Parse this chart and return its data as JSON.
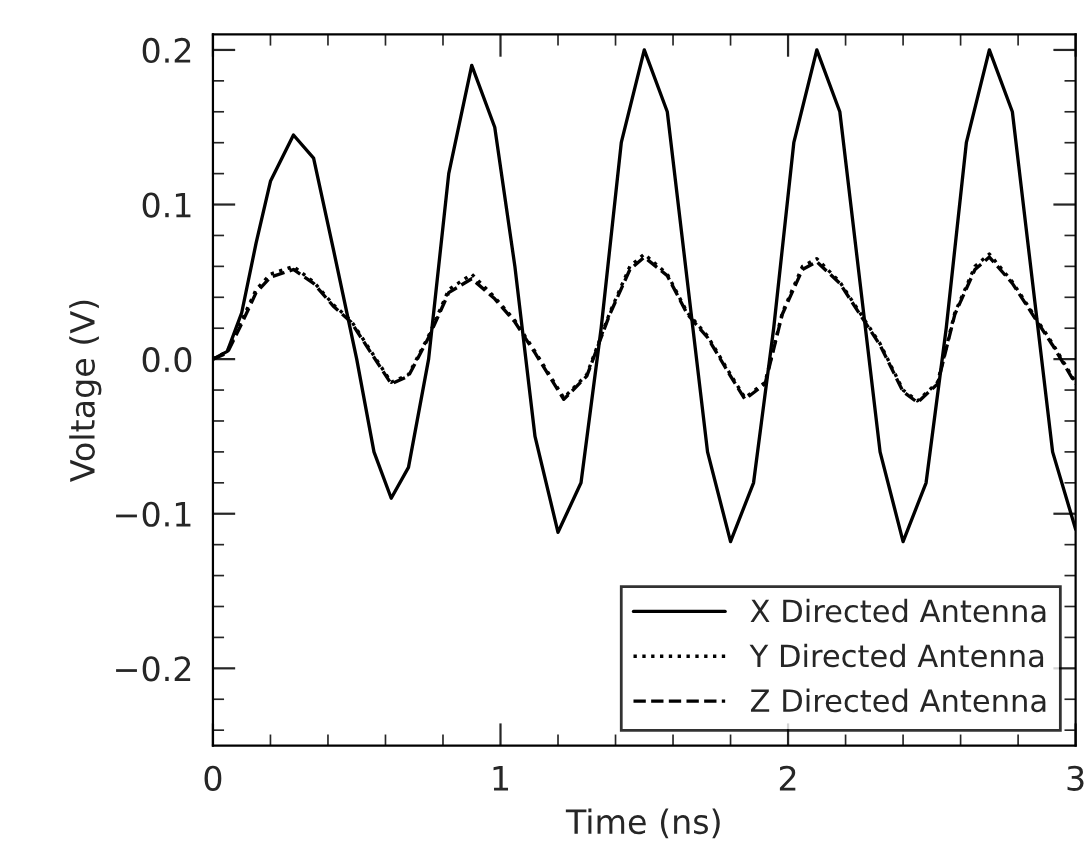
{
  "chart_data": {
    "type": "line",
    "xlabel": "Time (ns)",
    "ylabel": "Voltage (V)",
    "xlim": [
      0,
      3
    ],
    "xticks": [
      0,
      1,
      2,
      3
    ],
    "ylim": [
      -0.25,
      0.21
    ],
    "yticks": [
      {
        "value": -0.2,
        "label": "−0.2"
      },
      {
        "value": -0.1,
        "label": "−0.1"
      },
      {
        "value": 0.0,
        "label": "0.0"
      },
      0.1,
      0.2
    ],
    "grid": false,
    "legend": "bottom right",
    "marker": "none",
    "series": [
      {
        "name": "X Directed Antenna",
        "color": "#000000",
        "line_style": "solid",
        "x": [
          0,
          0.05,
          0.1,
          0.15,
          0.2,
          0.28,
          0.35,
          0.42,
          0.5,
          0.56,
          0.62,
          0.68,
          0.75,
          0.82,
          0.9,
          0.98,
          1.05,
          1.12,
          1.2,
          1.28,
          1.35,
          1.42,
          1.5,
          1.58,
          1.65,
          1.72,
          1.8,
          1.88,
          1.95,
          2.02,
          2.1,
          2.18,
          2.25,
          2.32,
          2.4,
          2.48,
          2.55,
          2.62,
          2.7,
          2.78,
          2.85,
          2.92,
          3.0
        ],
        "values": [
          0,
          0.005,
          0.03,
          0.075,
          0.115,
          0.145,
          0.13,
          0.07,
          0.0,
          -0.06,
          -0.09,
          -0.07,
          0.0,
          0.12,
          0.19,
          0.15,
          0.06,
          -0.05,
          -0.112,
          -0.08,
          0.02,
          0.14,
          0.2,
          0.16,
          0.05,
          -0.06,
          -0.118,
          -0.08,
          0.02,
          0.14,
          0.2,
          0.16,
          0.05,
          -0.06,
          -0.118,
          -0.08,
          0.02,
          0.14,
          0.2,
          0.16,
          0.05,
          -0.06,
          -0.11
        ]
      },
      {
        "name": "Y Directed Antenna",
        "color": "#000000",
        "line_style": "dotted",
        "x": [
          0,
          0.05,
          0.1,
          0.15,
          0.2,
          0.28,
          0.35,
          0.42,
          0.48,
          0.55,
          0.62,
          0.68,
          0.75,
          0.82,
          0.9,
          0.98,
          1.05,
          1.12,
          1.22,
          1.3,
          1.38,
          1.45,
          1.5,
          1.58,
          1.65,
          1.72,
          1.8,
          1.85,
          1.92,
          1.98,
          2.05,
          2.1,
          2.18,
          2.25,
          2.32,
          2.4,
          2.45,
          2.52,
          2.58,
          2.65,
          2.7,
          2.78,
          2.85,
          2.92,
          3.0
        ],
        "values": [
          0,
          0.005,
          0.025,
          0.045,
          0.055,
          0.06,
          0.05,
          0.035,
          0.025,
          0.005,
          -0.015,
          -0.01,
          0.015,
          0.045,
          0.055,
          0.04,
          0.025,
          0.005,
          -0.025,
          -0.01,
          0.03,
          0.06,
          0.068,
          0.055,
          0.03,
          0.015,
          -0.01,
          -0.025,
          -0.015,
          0.03,
          0.06,
          0.065,
          0.05,
          0.03,
          0.01,
          -0.02,
          -0.027,
          -0.015,
          0.03,
          0.06,
          0.068,
          0.05,
          0.03,
          0.01,
          -0.015
        ]
      },
      {
        "name": "Z Directed Antenna",
        "color": "#000000",
        "line_style": "dashed",
        "x": [
          0,
          0.05,
          0.1,
          0.15,
          0.2,
          0.28,
          0.35,
          0.42,
          0.48,
          0.55,
          0.62,
          0.68,
          0.75,
          0.82,
          0.9,
          0.98,
          1.05,
          1.12,
          1.22,
          1.3,
          1.38,
          1.45,
          1.5,
          1.58,
          1.65,
          1.72,
          1.8,
          1.85,
          1.92,
          1.98,
          2.05,
          2.1,
          2.18,
          2.25,
          2.32,
          2.4,
          2.45,
          2.52,
          2.58,
          2.65,
          2.7,
          2.78,
          2.85,
          2.92,
          3.0
        ],
        "values": [
          0,
          0.004,
          0.023,
          0.043,
          0.053,
          0.058,
          0.049,
          0.034,
          0.024,
          0.004,
          -0.016,
          -0.011,
          0.014,
          0.043,
          0.052,
          0.039,
          0.024,
          0.004,
          -0.026,
          -0.011,
          0.029,
          0.058,
          0.066,
          0.054,
          0.029,
          0.014,
          -0.011,
          -0.026,
          -0.016,
          0.029,
          0.058,
          0.063,
          0.049,
          0.029,
          0.009,
          -0.021,
          -0.028,
          -0.016,
          0.029,
          0.058,
          0.066,
          0.049,
          0.029,
          0.009,
          -0.016
        ]
      }
    ]
  }
}
